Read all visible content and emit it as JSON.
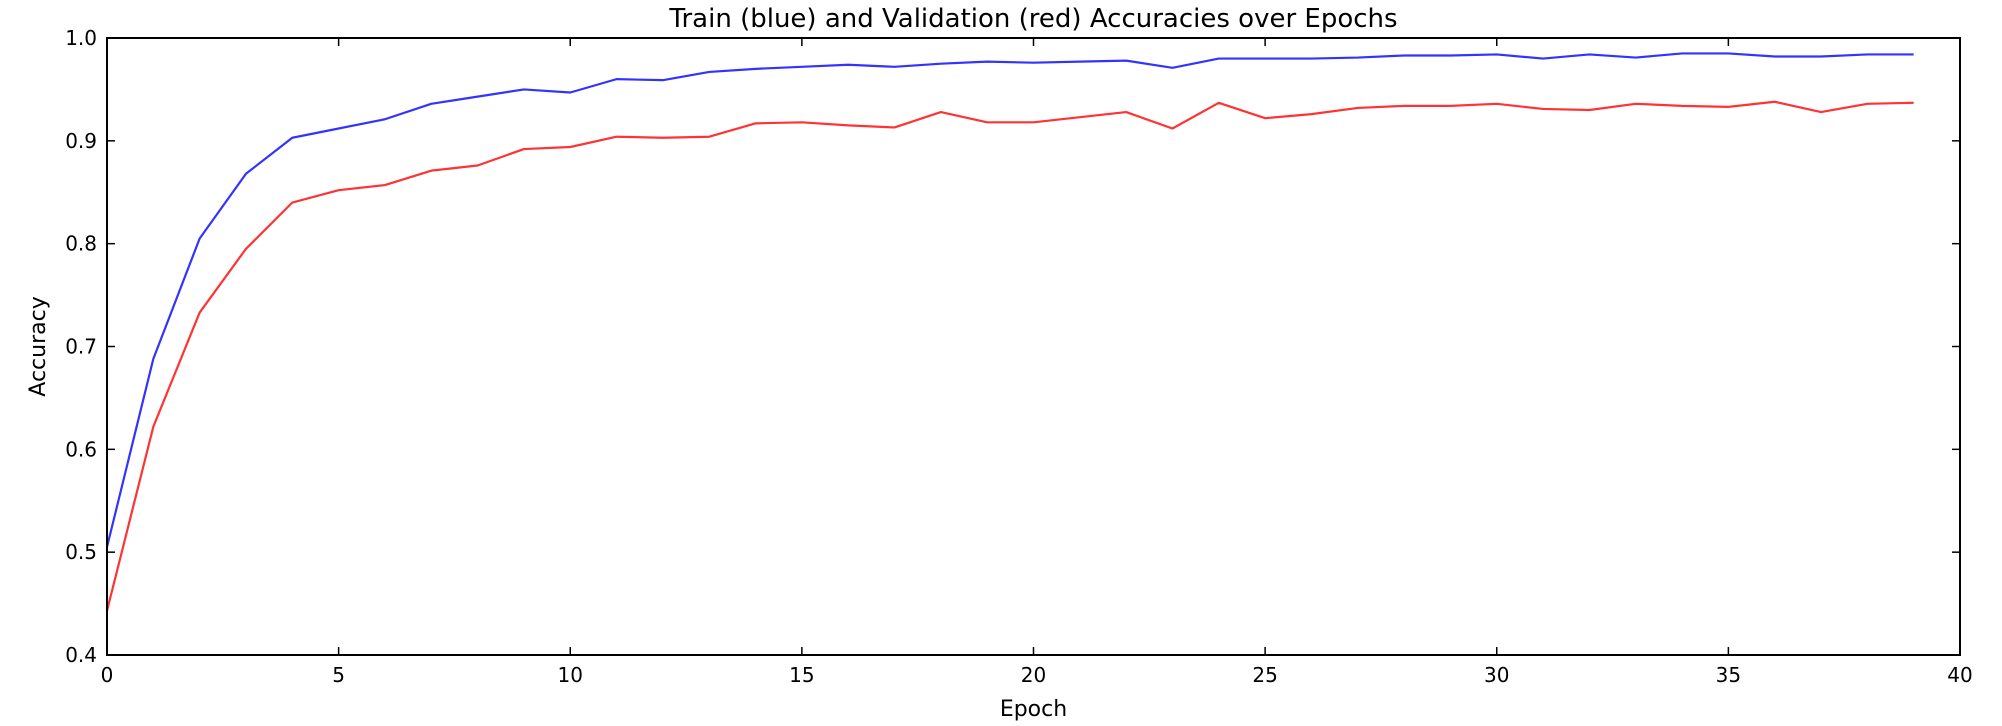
{
  "chart_data": {
    "type": "line",
    "title": "Train (blue) and Validation (red) Accuracies over Epochs",
    "xlabel": "Epoch",
    "ylabel": "Accuracy",
    "xlim": [
      0,
      40
    ],
    "ylim": [
      0.4,
      1.0
    ],
    "xticks": [
      0,
      5,
      10,
      15,
      20,
      25,
      30,
      35,
      40
    ],
    "yticks": [
      0.4,
      0.5,
      0.6,
      0.7,
      0.8,
      0.9,
      1.0
    ],
    "xtick_labels": [
      "0",
      "5",
      "10",
      "15",
      "20",
      "25",
      "30",
      "35",
      "40"
    ],
    "ytick_labels": [
      "0.4",
      "0.5",
      "0.6",
      "0.7",
      "0.8",
      "0.9",
      "1.0"
    ],
    "grid": false,
    "x": [
      0,
      1,
      2,
      3,
      4,
      5,
      6,
      7,
      8,
      9,
      10,
      11,
      12,
      13,
      14,
      15,
      16,
      17,
      18,
      19,
      20,
      21,
      22,
      23,
      24,
      25,
      26,
      27,
      28,
      29,
      30,
      31,
      32,
      33,
      34,
      35,
      36,
      37,
      38,
      39
    ],
    "series": [
      {
        "color": "#3333ff",
        "values": [
          0.505,
          0.688,
          0.805,
          0.868,
          0.903,
          0.912,
          0.921,
          0.936,
          0.943,
          0.95,
          0.947,
          0.96,
          0.959,
          0.967,
          0.97,
          0.972,
          0.974,
          0.972,
          0.975,
          0.977,
          0.976,
          0.977,
          0.978,
          0.971,
          0.98,
          0.98,
          0.98,
          0.981,
          0.983,
          0.983,
          0.984,
          0.98,
          0.984,
          0.981,
          0.985,
          0.985,
          0.982,
          0.982,
          0.984,
          0.984
        ]
      },
      {
        "color": "#ff3333",
        "values": [
          0.443,
          0.622,
          0.733,
          0.795,
          0.84,
          0.852,
          0.857,
          0.871,
          0.876,
          0.892,
          0.894,
          0.904,
          0.903,
          0.904,
          0.917,
          0.918,
          0.915,
          0.913,
          0.928,
          0.918,
          0.918,
          0.923,
          0.928,
          0.912,
          0.937,
          0.922,
          0.926,
          0.932,
          0.934,
          0.934,
          0.936,
          0.931,
          0.93,
          0.936,
          0.934,
          0.933,
          0.938,
          0.928,
          0.936,
          0.937
        ]
      }
    ]
  }
}
